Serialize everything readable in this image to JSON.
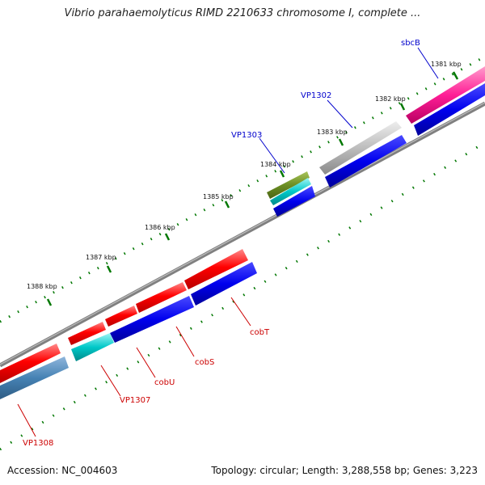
{
  "title": "Vibrio parahaemolyticus RIMD 2210633 chromosome I, complete ...",
  "accession": "Accession: NC_004603",
  "topology": "Topology: circular; Length: 3,288,558 bp; Genes: 3,223",
  "colors": {
    "gene_red": "#ee0000",
    "gene_blue": "#0000dd",
    "gene_cyan": "#00bbbb",
    "gene_pink": "#ff1e96",
    "gene_gray": "#bbbbbb",
    "gene_olive": "#6b8e23",
    "gene_steelblue": "#4682b4",
    "backbone": "#808080",
    "tick": "#007700",
    "label_blue": "#0000cc",
    "label_red": "#cc0000"
  },
  "ticks": [
    {
      "label": "1381 kbp"
    },
    {
      "label": "1382 kbp"
    },
    {
      "label": "1383 kbp"
    },
    {
      "label": "1384 kbp"
    },
    {
      "label": "1385 kbp"
    },
    {
      "label": "1386 kbp"
    },
    {
      "label": "1387 kbp"
    },
    {
      "label": "1388 kbp"
    }
  ],
  "gene_labels": [
    {
      "name": "sbcB"
    },
    {
      "name": "VP1302"
    },
    {
      "name": "VP1303"
    },
    {
      "name": "cobT"
    },
    {
      "name": "cobS"
    },
    {
      "name": "cobU"
    },
    {
      "name": "VP1307"
    },
    {
      "name": "VP1308"
    }
  ]
}
